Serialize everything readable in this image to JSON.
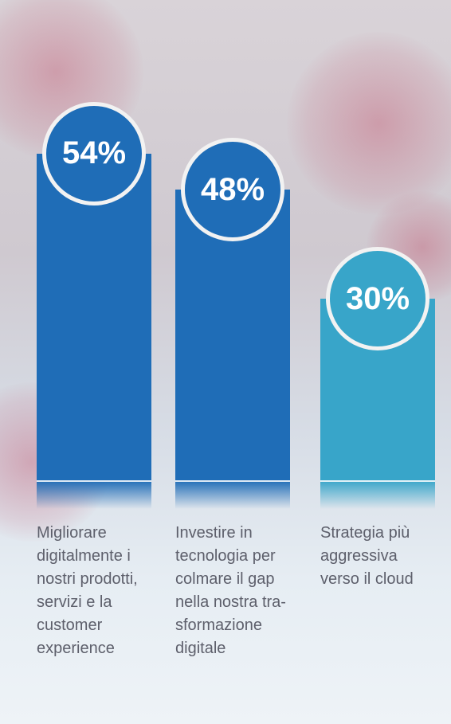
{
  "chart_data": {
    "type": "bar",
    "categories": [
      "Migliorare digitalmente i nostri prodotti, servizi e la customer experience",
      "Investire in tecnologia per colmare il gap nella nostra tra-sformazione digitale",
      "Strategia più aggressiva verso il cloud"
    ],
    "values": [
      54,
      48,
      30
    ],
    "value_labels": [
      "54%",
      "48%",
      "30%"
    ],
    "colors": [
      "#1f6db7",
      "#1f6db7",
      "#38a5c9"
    ]
  }
}
